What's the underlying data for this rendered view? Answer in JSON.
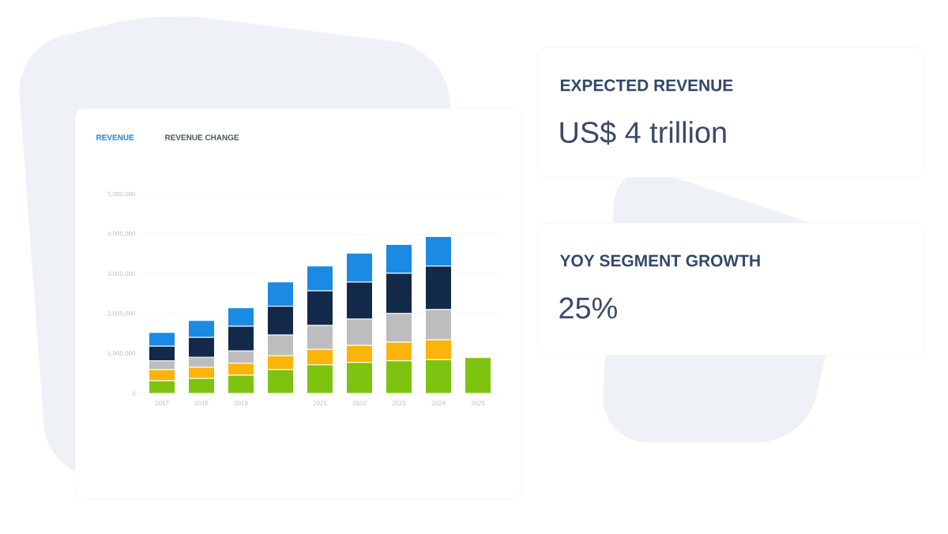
{
  "chart_data": {
    "type": "bar",
    "stacked": true,
    "categories": [
      "2017",
      "2018",
      "2019",
      null,
      "2021",
      "2022",
      "2023",
      "2024",
      "2025"
    ],
    "series": [
      {
        "color": "#7dc30f",
        "values": [
          320000,
          380000,
          460000,
          600000,
          720000,
          780000,
          820000,
          850000,
          900000
        ]
      },
      {
        "color": "#fbb40a",
        "values": [
          280000,
          280000,
          300000,
          350000,
          390000,
          430000,
          470000,
          500000,
          null
        ]
      },
      {
        "color": "#bdbdbd",
        "values": [
          220000,
          250000,
          310000,
          520000,
          600000,
          660000,
          720000,
          760000,
          null
        ]
      },
      {
        "color": "#12294a",
        "values": [
          370000,
          500000,
          620000,
          720000,
          870000,
          930000,
          1010000,
          1090000,
          null
        ]
      },
      {
        "color": "#1a8ae2",
        "values": [
          340000,
          420000,
          460000,
          610000,
          620000,
          720000,
          720000,
          740000,
          null
        ]
      }
    ],
    "ylim": [
      0,
      5000000
    ],
    "yticks": [
      {
        "value": 0,
        "label": "0"
      },
      {
        "value": 1000000,
        "label": "1,000,000"
      },
      {
        "value": 2000000,
        "label": "2,000,000"
      },
      {
        "value": 3000000,
        "label": "3,000,000"
      },
      {
        "value": 4000000,
        "label": "4,000,000"
      },
      {
        "value": 5000000,
        "label": "5,000,000"
      }
    ],
    "grid": "y",
    "annotations": [
      "REVENUE",
      "REVENUE CHANGE",
      "EXPECTED REVENUE",
      "US$ 4 trillion",
      "YOY SEGMENT GROWTH",
      "25%"
    ]
  }
}
